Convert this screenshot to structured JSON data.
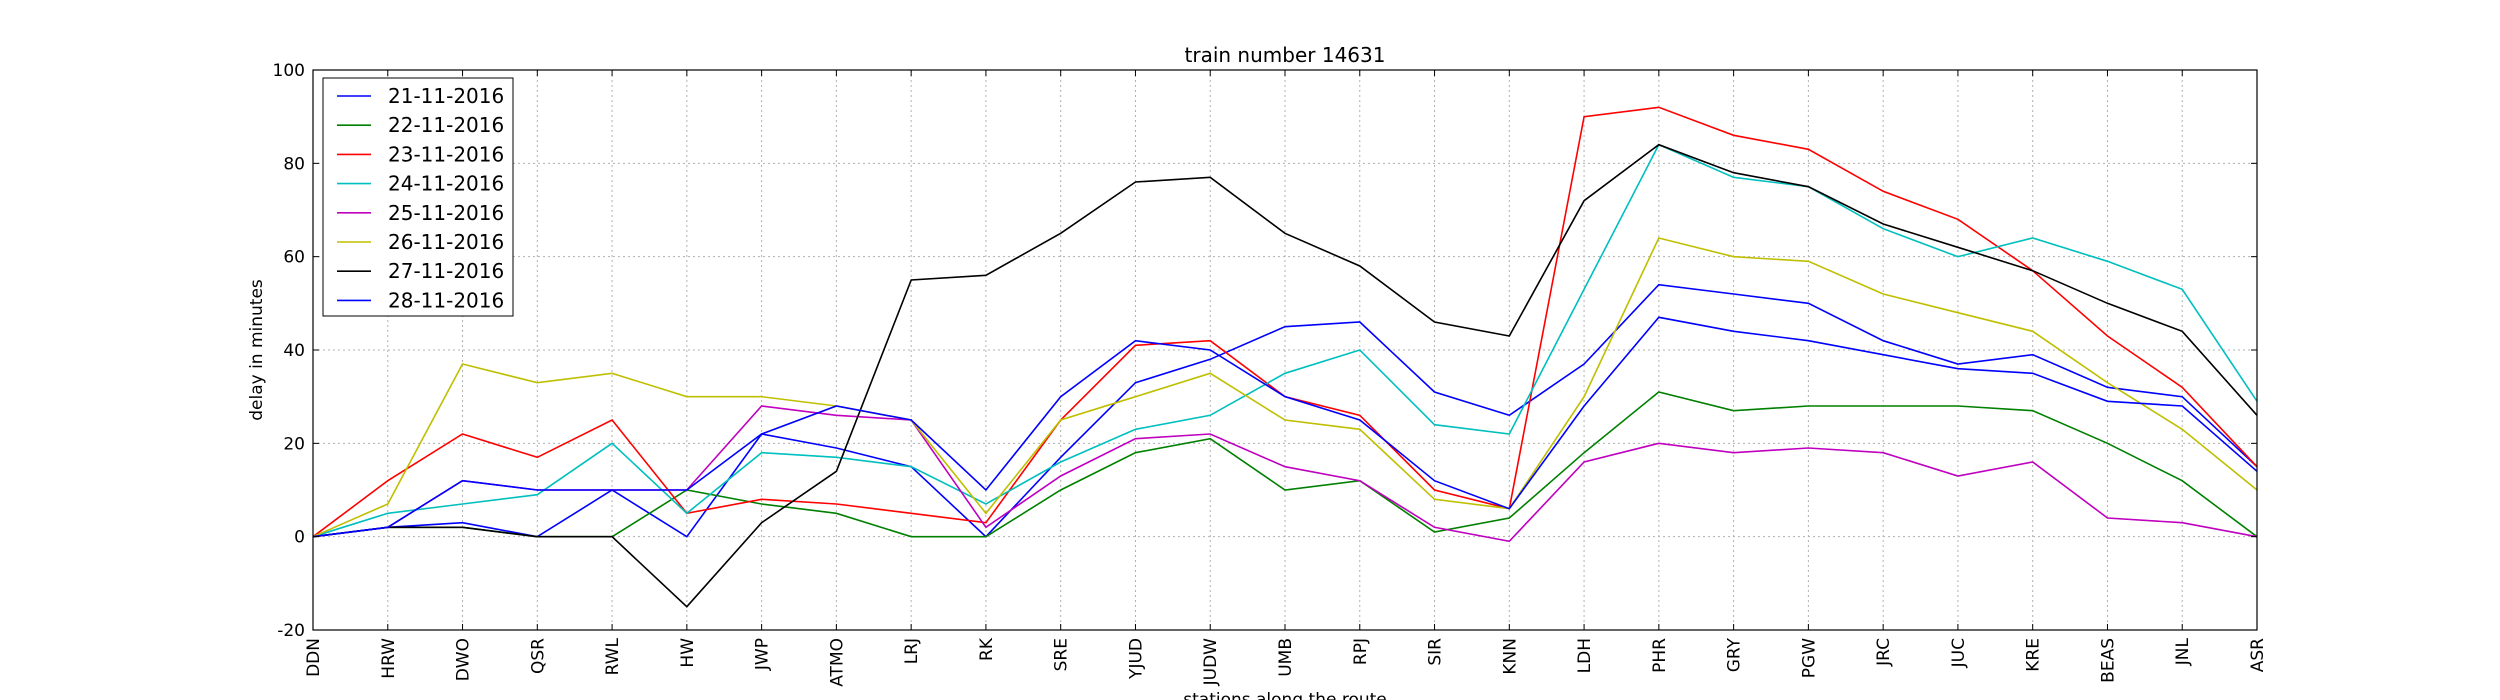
{
  "chart_data": {
    "type": "line",
    "title": "train number 14631",
    "xlabel": "stations along the route",
    "ylabel": "delay in minutes",
    "ylim": [
      -20,
      100
    ],
    "yticks": [
      -20,
      0,
      20,
      40,
      60,
      80,
      100
    ],
    "grid": true,
    "legend_position": "top-left",
    "categories": [
      "DDN",
      "HRW",
      "DWO",
      "QSR",
      "RWL",
      "HW",
      "JWP",
      "ATMO",
      "LRJ",
      "RK",
      "SRE",
      "YJUD",
      "JUDW",
      "UMB",
      "RPJ",
      "SIR",
      "KNN",
      "LDH",
      "PHR",
      "GRY",
      "PGW",
      "JRC",
      "JUC",
      "KRE",
      "BEAS",
      "JNL",
      "ASR"
    ],
    "series": [
      {
        "name": "21-11-2016",
        "color": "#0000ff",
        "values": [
          0,
          2,
          3,
          0,
          10,
          0,
          22,
          19,
          15,
          0,
          17,
          33,
          38,
          45,
          46,
          31,
          26,
          37,
          54,
          52,
          50,
          42,
          37,
          39,
          32,
          30,
          15
        ]
      },
      {
        "name": "22-11-2016",
        "color": "#008000",
        "values": [
          0,
          2,
          2,
          0,
          0,
          10,
          7,
          5,
          0,
          0,
          10,
          18,
          21,
          10,
          12,
          1,
          4,
          18,
          31,
          27,
          28,
          28,
          28,
          27,
          20,
          12,
          0
        ]
      },
      {
        "name": "23-11-2016",
        "color": "#ff0000",
        "values": [
          0,
          12,
          22,
          17,
          25,
          5,
          8,
          7,
          5,
          3,
          25,
          41,
          42,
          30,
          26,
          10,
          6,
          90,
          92,
          86,
          83,
          74,
          68,
          57,
          43,
          32,
          15
        ]
      },
      {
        "name": "24-11-2016",
        "color": "#00bfbf",
        "values": [
          0,
          5,
          7,
          9,
          20,
          5,
          18,
          17,
          15,
          7,
          16,
          23,
          26,
          35,
          40,
          24,
          22,
          53,
          84,
          77,
          75,
          66,
          60,
          64,
          59,
          53,
          29
        ]
      },
      {
        "name": "25-11-2016",
        "color": "#bf00bf",
        "values": [
          0,
          2,
          12,
          10,
          10,
          10,
          28,
          26,
          25,
          2,
          13,
          21,
          22,
          15,
          12,
          2,
          -1,
          16,
          20,
          18,
          19,
          18,
          13,
          16,
          4,
          3,
          0
        ]
      },
      {
        "name": "26-11-2016",
        "color": "#bfbf00",
        "values": [
          0,
          7,
          37,
          33,
          35,
          30,
          30,
          28,
          25,
          5,
          25,
          30,
          35,
          25,
          23,
          8,
          6,
          30,
          64,
          60,
          59,
          52,
          48,
          44,
          33,
          23,
          10
        ]
      },
      {
        "name": "27-11-2016",
        "color": "#000000",
        "values": [
          0,
          2,
          2,
          0,
          0,
          -15,
          3,
          14,
          55,
          56,
          65,
          76,
          77,
          65,
          58,
          46,
          43,
          72,
          84,
          78,
          75,
          67,
          62,
          57,
          50,
          44,
          26
        ]
      },
      {
        "name": "28-11-2016",
        "color": "#0000ff",
        "values": [
          0,
          2,
          12,
          10,
          10,
          10,
          22,
          28,
          25,
          10,
          30,
          42,
          40,
          30,
          25,
          12,
          6,
          28,
          47,
          44,
          42,
          39,
          36,
          35,
          29,
          28,
          14
        ]
      }
    ]
  }
}
